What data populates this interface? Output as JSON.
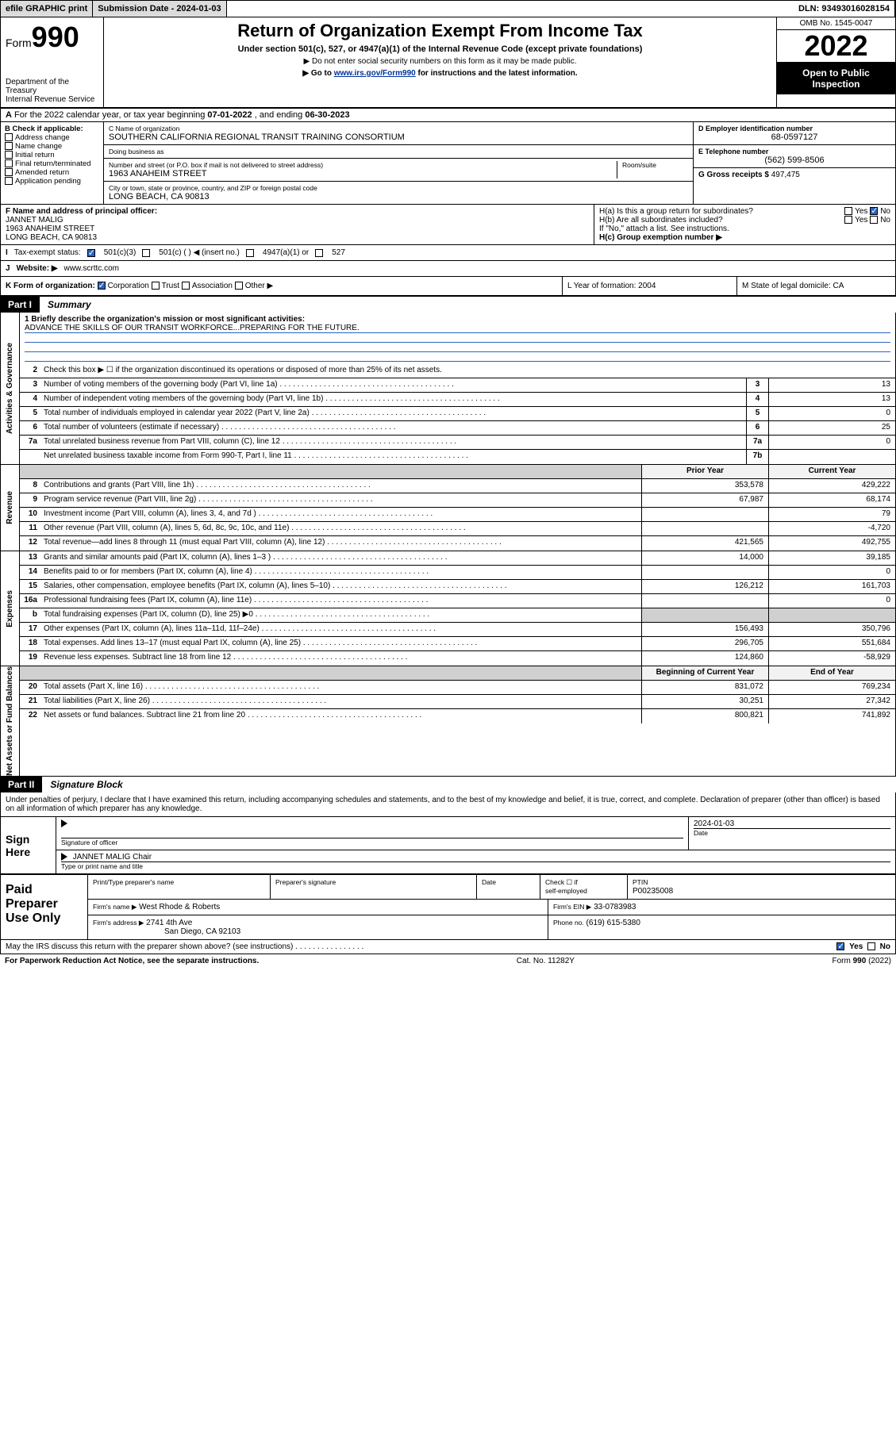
{
  "topbar": {
    "efile": "efile GRAPHIC print",
    "submission_label": "Submission Date - 2024-01-03",
    "dln_label": "DLN: 93493016028154"
  },
  "header": {
    "form_word": "Form",
    "form_num": "990",
    "dept": "Department of the Treasury",
    "irs": "Internal Revenue Service",
    "title": "Return of Organization Exempt From Income Tax",
    "sub": "Under section 501(c), 527, or 4947(a)(1) of the Internal Revenue Code (except private foundations)",
    "note1": "▶ Do not enter social security numbers on this form as it may be made public.",
    "note2_a": "▶ Go to ",
    "note2_link": "www.irs.gov/Form990",
    "note2_b": " for instructions and the latest information.",
    "omb": "OMB No. 1545-0047",
    "year": "2022",
    "open": "Open to Public Inspection"
  },
  "rowA": {
    "text_a": "For the 2022 calendar year, or tax year beginning ",
    "begin": "07-01-2022",
    "text_b": " , and ending ",
    "end": "06-30-2023"
  },
  "colB": {
    "title": "B Check if applicable:",
    "items": [
      "Address change",
      "Name change",
      "Initial return",
      "Final return/terminated",
      "Amended return",
      "Application pending"
    ]
  },
  "colC": {
    "name_label": "C Name of organization",
    "name": "SOUTHERN CALIFORNIA REGIONAL TRANSIT TRAINING CONSORTIUM",
    "dba_label": "Doing business as",
    "dba": "",
    "addr_label": "Number and street (or P.O. box if mail is not delivered to street address)",
    "room_label": "Room/suite",
    "addr": "1963 ANAHEIM STREET",
    "city_label": "City or town, state or province, country, and ZIP or foreign postal code",
    "city": "LONG BEACH, CA  90813"
  },
  "colDE": {
    "d_label": "D Employer identification number",
    "d_val": "68-0597127",
    "e_label": "E Telephone number",
    "e_val": "(562) 599-8506",
    "g_label": "G Gross receipts $",
    "g_val": "497,475"
  },
  "rowF": {
    "label": "F Name and address of principal officer:",
    "name": "JANNET MALIG",
    "addr1": "1963 ANAHEIM STREET",
    "addr2": "LONG BEACH, CA  90813"
  },
  "rowH": {
    "ha": "H(a)  Is this a group return for subordinates?",
    "hb": "H(b)  Are all subordinates included?",
    "hb_note": "If \"No,\" attach a list. See instructions.",
    "hc": "H(c)  Group exemption number ▶",
    "yes": "Yes",
    "no": "No"
  },
  "rowI": {
    "label": "Tax-exempt status:",
    "opts": [
      "501(c)(3)",
      "501(c) (   ) ◀ (insert no.)",
      "4947(a)(1) or",
      "527"
    ]
  },
  "rowJ": {
    "label": "Website: ▶",
    "val": "www.scrttc.com"
  },
  "rowK": {
    "label": "K Form of organization:",
    "opts": [
      "Corporation",
      "Trust",
      "Association",
      "Other ▶"
    ]
  },
  "rowLM": {
    "l": "L Year of formation: 2004",
    "m": "M State of legal domicile: CA"
  },
  "partI": {
    "tag": "Part I",
    "title": "Summary"
  },
  "mission_label": "1   Briefly describe the organization's mission or most significant activities:",
  "mission": "ADVANCE THE SKILLS OF OUR TRANSIT WORKFORCE...PREPARING FOR THE FUTURE.",
  "line2": "Check this box ▶ ☐  if the organization discontinued its operations or disposed of more than 25% of its net assets.",
  "sections": {
    "gov": "Activities & Governance",
    "rev": "Revenue",
    "exp": "Expenses",
    "net": "Net Assets or Fund Balances"
  },
  "lines_gov": [
    {
      "n": "3",
      "d": "Number of voting members of the governing body (Part VI, line 1a)",
      "box": "3",
      "v": "13"
    },
    {
      "n": "4",
      "d": "Number of independent voting members of the governing body (Part VI, line 1b)",
      "box": "4",
      "v": "13"
    },
    {
      "n": "5",
      "d": "Total number of individuals employed in calendar year 2022 (Part V, line 2a)",
      "box": "5",
      "v": "0"
    },
    {
      "n": "6",
      "d": "Total number of volunteers (estimate if necessary)",
      "box": "6",
      "v": "25"
    },
    {
      "n": "7a",
      "d": "Total unrelated business revenue from Part VIII, column (C), line 12",
      "box": "7a",
      "v": "0"
    },
    {
      "n": "",
      "d": "Net unrelated business taxable income from Form 990-T, Part I, line 11",
      "box": "7b",
      "v": ""
    }
  ],
  "col_hdr": {
    "prior": "Prior Year",
    "current": "Current Year",
    "boy": "Beginning of Current Year",
    "eoy": "End of Year"
  },
  "lines_rev": [
    {
      "n": "8",
      "d": "Contributions and grants (Part VIII, line 1h)",
      "p": "353,578",
      "c": "429,222"
    },
    {
      "n": "9",
      "d": "Program service revenue (Part VIII, line 2g)",
      "p": "67,987",
      "c": "68,174"
    },
    {
      "n": "10",
      "d": "Investment income (Part VIII, column (A), lines 3, 4, and 7d )",
      "p": "",
      "c": "79"
    },
    {
      "n": "11",
      "d": "Other revenue (Part VIII, column (A), lines 5, 6d, 8c, 9c, 10c, and 11e)",
      "p": "",
      "c": "-4,720"
    },
    {
      "n": "12",
      "d": "Total revenue—add lines 8 through 11 (must equal Part VIII, column (A), line 12)",
      "p": "421,565",
      "c": "492,755"
    }
  ],
  "lines_exp": [
    {
      "n": "13",
      "d": "Grants and similar amounts paid (Part IX, column (A), lines 1–3 )",
      "p": "14,000",
      "c": "39,185"
    },
    {
      "n": "14",
      "d": "Benefits paid to or for members (Part IX, column (A), line 4)",
      "p": "",
      "c": "0"
    },
    {
      "n": "15",
      "d": "Salaries, other compensation, employee benefits (Part IX, column (A), lines 5–10)",
      "p": "126,212",
      "c": "161,703"
    },
    {
      "n": "16a",
      "d": "Professional fundraising fees (Part IX, column (A), line 11e)",
      "p": "",
      "c": "0"
    },
    {
      "n": "b",
      "d": "Total fundraising expenses (Part IX, column (D), line 25) ▶0",
      "p": "",
      "c": "",
      "grey": true
    },
    {
      "n": "17",
      "d": "Other expenses (Part IX, column (A), lines 11a–11d, 11f–24e)",
      "p": "156,493",
      "c": "350,796"
    },
    {
      "n": "18",
      "d": "Total expenses. Add lines 13–17 (must equal Part IX, column (A), line 25)",
      "p": "296,705",
      "c": "551,684"
    },
    {
      "n": "19",
      "d": "Revenue less expenses. Subtract line 18 from line 12",
      "p": "124,860",
      "c": "-58,929"
    }
  ],
  "lines_net": [
    {
      "n": "20",
      "d": "Total assets (Part X, line 16)",
      "p": "831,072",
      "c": "769,234"
    },
    {
      "n": "21",
      "d": "Total liabilities (Part X, line 26)",
      "p": "30,251",
      "c": "27,342"
    },
    {
      "n": "22",
      "d": "Net assets or fund balances. Subtract line 21 from line 20",
      "p": "800,821",
      "c": "741,892"
    }
  ],
  "partII": {
    "tag": "Part II",
    "title": "Signature Block"
  },
  "sig_text": "Under penalties of perjury, I declare that I have examined this return, including accompanying schedules and statements, and to the best of my knowledge and belief, it is true, correct, and complete. Declaration of preparer (other than officer) is based on all information of which preparer has any knowledge.",
  "sign": {
    "here": "Sign Here",
    "sig_label": "Signature of officer",
    "date_label": "Date",
    "date": "2024-01-03",
    "name": "JANNET MALIG  Chair",
    "name_label": "Type or print name and title"
  },
  "prep": {
    "title": "Paid Preparer Use Only",
    "h1": "Print/Type preparer's name",
    "h2": "Preparer's signature",
    "h3": "Date",
    "h4a": "Check ☐ if",
    "h4b": "self-employed",
    "h5": "PTIN",
    "ptin": "P00235008",
    "firm_name_l": "Firm's name    ▶",
    "firm_name": "West Rhode & Roberts",
    "firm_ein_l": "Firm's EIN ▶",
    "firm_ein": "33-0783983",
    "firm_addr_l": "Firm's address ▶",
    "firm_addr1": "2741 4th Ave",
    "firm_addr2": "San Diego, CA  92103",
    "phone_l": "Phone no.",
    "phone": "(619) 615-5380"
  },
  "lastq": "May the IRS discuss this return with the preparer shown above? (see instructions)",
  "footer": {
    "left": "For Paperwork Reduction Act Notice, see the separate instructions.",
    "mid": "Cat. No. 11282Y",
    "right": "Form 990 (2022)"
  }
}
